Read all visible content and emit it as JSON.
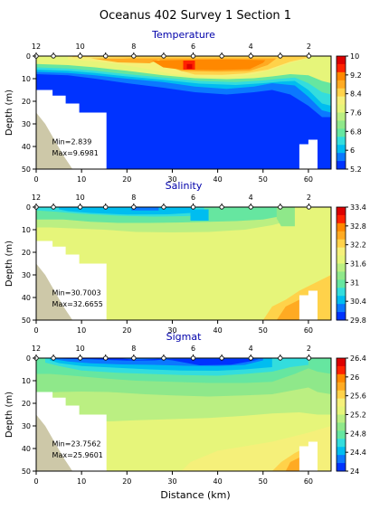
{
  "figure": {
    "title": "Oceanus 402 Survey 1 Section 1",
    "xlabel": "Distance (km)"
  },
  "colors": {
    "scale": [
      "#0033ff",
      "#0b78ff",
      "#00bdf0",
      "#33dddd",
      "#66e6a0",
      "#8fe88a",
      "#bbef82",
      "#e6f57a",
      "#f5f07a",
      "#ffd24a",
      "#ffaa22",
      "#ff8800",
      "#ff2200",
      "#dd0000"
    ],
    "terrain": "#cdc8a8",
    "text_title": "#0000aa"
  },
  "chart_data": [
    {
      "type": "heatmap",
      "title": "Temperature",
      "xlabel": "",
      "ylabel": "Depth (m)",
      "xlim": [
        0,
        65
      ],
      "ylim": [
        50,
        0
      ],
      "x_ticks": [
        0,
        10,
        20,
        30,
        40,
        50,
        60
      ],
      "y_ticks": [
        0,
        10,
        20,
        30,
        40,
        50
      ],
      "stations": [
        12,
        10,
        8,
        6,
        4,
        2
      ],
      "station_x_km": [
        0,
        3.8,
        9.7,
        15.3,
        21.5,
        28.1,
        34.6,
        40.9,
        47.3,
        53.8,
        60.1
      ],
      "colorbar": {
        "min": 5.2,
        "max": 10,
        "ticks": [
          10,
          9.2,
          8.4,
          7.6,
          6.8,
          6,
          5.2
        ],
        "labels": [
          "10",
          "9.2",
          "8.4",
          "7.6",
          "6.8",
          "6",
          "5.2"
        ]
      },
      "min_label": "Min=2.839",
      "max_label": "Max=9.6981",
      "annot_y_m": [
        39,
        44
      ]
    },
    {
      "type": "heatmap",
      "title": "Salinity",
      "xlabel": "",
      "ylabel": "Depth (m)",
      "xlim": [
        0,
        65
      ],
      "ylim": [
        50,
        0
      ],
      "x_ticks": [
        0,
        10,
        20,
        30,
        40,
        50,
        60
      ],
      "y_ticks": [
        0,
        10,
        20,
        30,
        40,
        50
      ],
      "stations": [
        12,
        10,
        8,
        6,
        4,
        2
      ],
      "station_x_km": [
        0,
        3.8,
        9.7,
        15.3,
        21.5,
        28.1,
        34.6,
        40.9,
        47.3,
        53.8,
        60.1
      ],
      "colorbar": {
        "min": 29.8,
        "max": 33.4,
        "ticks": [
          33.4,
          32.8,
          32.2,
          31.6,
          31,
          30.4,
          29.8
        ],
        "labels": [
          "33.4",
          "32.8",
          "32.2",
          "31.6",
          "31",
          "30.4",
          "29.8"
        ]
      },
      "min_label": "Min=30.7003",
      "max_label": "Max=32.6655",
      "annot_y_m": [
        39,
        44
      ]
    },
    {
      "type": "heatmap",
      "title": "Sigmat",
      "xlabel": "Distance (km)",
      "ylabel": "Depth (m)",
      "xlim": [
        0,
        65
      ],
      "ylim": [
        50,
        0
      ],
      "x_ticks": [
        0,
        10,
        20,
        30,
        40,
        50,
        60
      ],
      "y_ticks": [
        0,
        10,
        20,
        30,
        40,
        50
      ],
      "stations": [
        12,
        10,
        8,
        6,
        4,
        2
      ],
      "station_x_km": [
        0,
        3.8,
        9.7,
        15.3,
        21.5,
        28.1,
        34.6,
        40.9,
        47.3,
        53.8,
        60.1
      ],
      "colorbar": {
        "min": 24,
        "max": 26.4,
        "ticks": [
          26.4,
          26,
          25.6,
          25.2,
          24.8,
          24.4,
          24
        ],
        "labels": [
          "26.4",
          "26",
          "25.6",
          "25.2",
          "24.8",
          "24.4",
          "24"
        ]
      },
      "min_label": "Min=23.7562",
      "max_label": "Max=25.9601",
      "annot_y_m": [
        39,
        44
      ]
    }
  ]
}
